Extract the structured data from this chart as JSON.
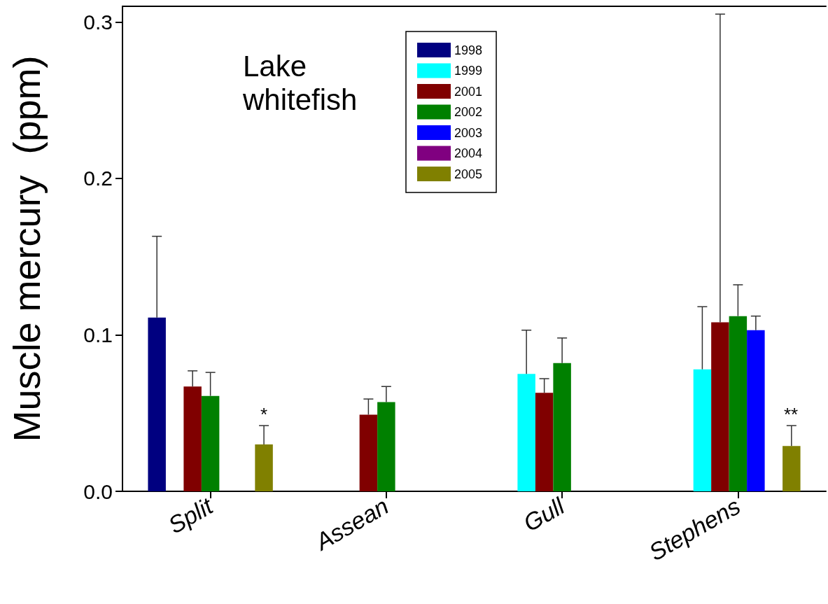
{
  "chart_data": {
    "type": "bar",
    "ylabel": "Muscle mercury  (ppm)",
    "categories": [
      "Split",
      "Assean",
      "Gull",
      "Stephens"
    ],
    "series": [
      {
        "name": "1998",
        "color": "#000080",
        "values": [
          0.111,
          null,
          null,
          null
        ],
        "errors": [
          [
            0.111,
            0.163
          ],
          null,
          null,
          null
        ]
      },
      {
        "name": "1999",
        "color": "#00ffff",
        "values": [
          null,
          null,
          0.075,
          0.078
        ],
        "errors": [
          null,
          null,
          [
            0.075,
            0.103
          ],
          [
            0.078,
            0.118
          ]
        ]
      },
      {
        "name": "2001",
        "color": "#800000",
        "values": [
          0.067,
          0.049,
          0.063,
          0.108
        ],
        "errors": [
          [
            0.067,
            0.077
          ],
          [
            0.049,
            0.059
          ],
          [
            0.063,
            0.072
          ],
          [
            0.108,
            0.305
          ]
        ]
      },
      {
        "name": "2002",
        "color": "#008000",
        "values": [
          0.061,
          0.057,
          0.082,
          0.112
        ],
        "errors": [
          [
            0.061,
            0.076
          ],
          [
            0.057,
            0.067
          ],
          [
            0.082,
            0.098
          ],
          [
            0.112,
            0.132
          ]
        ]
      },
      {
        "name": "2003",
        "color": "#0000ff",
        "values": [
          null,
          null,
          null,
          0.103
        ],
        "errors": [
          null,
          null,
          null,
          [
            0.103,
            0.112
          ]
        ]
      },
      {
        "name": "2004",
        "color": "#800080",
        "values": [
          null,
          null,
          null,
          null
        ]
      },
      {
        "name": "2005",
        "color": "#808000",
        "values": [
          0.03,
          null,
          null,
          0.029
        ],
        "errors": [
          [
            0.03,
            0.042
          ],
          null,
          null,
          [
            0.029,
            0.042
          ]
        ]
      }
    ],
    "ylim": [
      0,
      0.31
    ],
    "yticks": [
      {
        "value": 0,
        "label": "0.0"
      },
      0.1,
      0.2,
      0.3
    ],
    "grid": false,
    "legend": "top",
    "annotations": [
      "Lake\nwhitefish",
      "*",
      "**"
    ]
  }
}
